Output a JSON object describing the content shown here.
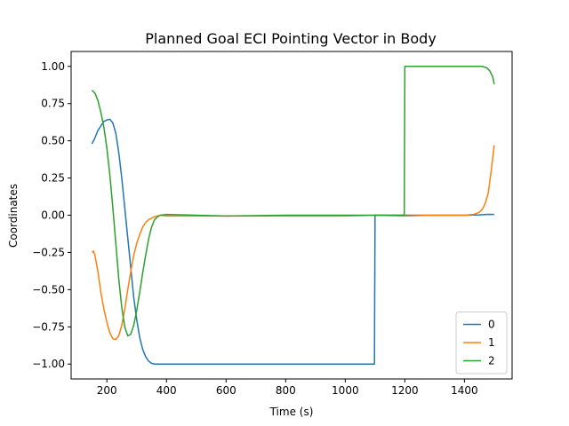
{
  "chart_data": {
    "type": "line",
    "title": "Planned Goal ECI Pointing Vector in Body",
    "xlabel": "Time (s)",
    "ylabel": "Coordinates",
    "xlim": [
      80,
      1560
    ],
    "ylim": [
      -1.1,
      1.1
    ],
    "xticks": [
      200,
      400,
      600,
      800,
      1000,
      1200,
      1400
    ],
    "xtick_labels": [
      "200",
      "400",
      "600",
      "800",
      "1000",
      "1200",
      "1400"
    ],
    "yticks": [
      -1.0,
      -0.75,
      -0.5,
      -0.25,
      0.0,
      0.25,
      0.5,
      0.75,
      1.0
    ],
    "ytick_labels": [
      "−1.00",
      "−0.75",
      "−0.50",
      "−0.25",
      "0.00",
      "0.25",
      "0.50",
      "0.75",
      "1.00"
    ],
    "grid": false,
    "legend_position": "lower-right",
    "series": [
      {
        "name": "0",
        "color": "#1f77b4",
        "points": [
          [
            150,
            0.48
          ],
          [
            160,
            0.52
          ],
          [
            170,
            0.57
          ],
          [
            180,
            0.6
          ],
          [
            190,
            0.63
          ],
          [
            200,
            0.64
          ],
          [
            210,
            0.645
          ],
          [
            220,
            0.62
          ],
          [
            230,
            0.55
          ],
          [
            240,
            0.42
          ],
          [
            250,
            0.25
          ],
          [
            260,
            0.05
          ],
          [
            270,
            -0.15
          ],
          [
            280,
            -0.35
          ],
          [
            290,
            -0.55
          ],
          [
            300,
            -0.7
          ],
          [
            310,
            -0.82
          ],
          [
            320,
            -0.9
          ],
          [
            330,
            -0.95
          ],
          [
            340,
            -0.98
          ],
          [
            350,
            -0.995
          ],
          [
            360,
            -1.0
          ],
          [
            400,
            -1.0
          ],
          [
            600,
            -1.0
          ],
          [
            800,
            -1.0
          ],
          [
            1000,
            -1.0
          ],
          [
            1098,
            -1.0
          ],
          [
            1100,
            0.0
          ],
          [
            1200,
            0.0
          ],
          [
            1300,
            0.0
          ],
          [
            1400,
            0.0
          ],
          [
            1450,
            0.002
          ],
          [
            1480,
            0.006
          ],
          [
            1500,
            0.005
          ]
        ]
      },
      {
        "name": "1",
        "color": "#ff7f0e",
        "points": [
          [
            150,
            -0.25
          ],
          [
            155,
            -0.24
          ],
          [
            160,
            -0.27
          ],
          [
            170,
            -0.38
          ],
          [
            180,
            -0.52
          ],
          [
            190,
            -0.63
          ],
          [
            200,
            -0.72
          ],
          [
            210,
            -0.79
          ],
          [
            220,
            -0.83
          ],
          [
            230,
            -0.835
          ],
          [
            240,
            -0.81
          ],
          [
            250,
            -0.74
          ],
          [
            260,
            -0.63
          ],
          [
            270,
            -0.5
          ],
          [
            280,
            -0.38
          ],
          [
            290,
            -0.27
          ],
          [
            300,
            -0.19
          ],
          [
            310,
            -0.13
          ],
          [
            320,
            -0.08
          ],
          [
            330,
            -0.05
          ],
          [
            340,
            -0.03
          ],
          [
            350,
            -0.02
          ],
          [
            360,
            -0.01
          ],
          [
            380,
            0.0
          ],
          [
            400,
            -0.005
          ],
          [
            600,
            -0.005
          ],
          [
            800,
            -0.005
          ],
          [
            1000,
            -0.005
          ],
          [
            1100,
            0.0
          ],
          [
            1200,
            -0.005
          ],
          [
            1300,
            0.0
          ],
          [
            1400,
            0.0
          ],
          [
            1430,
            0.005
          ],
          [
            1450,
            0.02
          ],
          [
            1460,
            0.04
          ],
          [
            1470,
            0.08
          ],
          [
            1480,
            0.15
          ],
          [
            1490,
            0.3
          ],
          [
            1500,
            0.47
          ]
        ]
      },
      {
        "name": "2",
        "color": "#2ca02c",
        "points": [
          [
            150,
            0.84
          ],
          [
            160,
            0.82
          ],
          [
            170,
            0.77
          ],
          [
            180,
            0.69
          ],
          [
            190,
            0.59
          ],
          [
            200,
            0.45
          ],
          [
            210,
            0.27
          ],
          [
            220,
            0.05
          ],
          [
            230,
            -0.19
          ],
          [
            240,
            -0.43
          ],
          [
            250,
            -0.62
          ],
          [
            260,
            -0.75
          ],
          [
            270,
            -0.81
          ],
          [
            280,
            -0.8
          ],
          [
            290,
            -0.74
          ],
          [
            300,
            -0.64
          ],
          [
            310,
            -0.52
          ],
          [
            320,
            -0.39
          ],
          [
            330,
            -0.27
          ],
          [
            340,
            -0.16
          ],
          [
            350,
            -0.08
          ],
          [
            360,
            -0.03
          ],
          [
            370,
            -0.01
          ],
          [
            380,
            0.0
          ],
          [
            400,
            0.005
          ],
          [
            600,
            -0.005
          ],
          [
            800,
            0.0
          ],
          [
            1000,
            0.0
          ],
          [
            1100,
            0.0
          ],
          [
            1198,
            0.0
          ],
          [
            1200,
            1.0
          ],
          [
            1300,
            1.0
          ],
          [
            1400,
            1.0
          ],
          [
            1460,
            1.0
          ],
          [
            1475,
            0.99
          ],
          [
            1485,
            0.97
          ],
          [
            1495,
            0.93
          ],
          [
            1500,
            0.88
          ]
        ]
      }
    ]
  }
}
